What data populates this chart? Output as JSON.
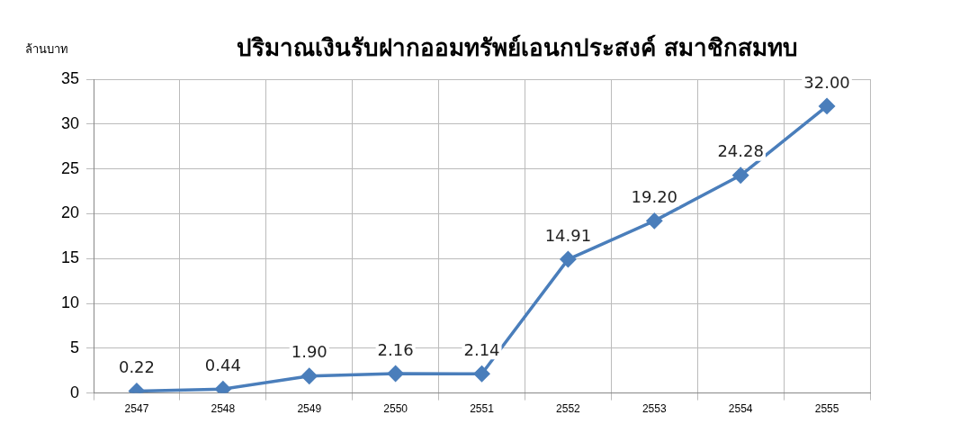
{
  "chart_data": {
    "type": "line",
    "title": "ปริมาณเงินรับฝากออมทรัพย์เอนกประสงค์ สมาชิกสมทบ",
    "ylabel": "ล้านบาท",
    "categories": [
      "2547",
      "2548",
      "2549",
      "2550",
      "2551",
      "2552",
      "2553",
      "2554",
      "2555"
    ],
    "series": [
      {
        "color": "#4a7ebb",
        "values": [
          0.22,
          0.44,
          1.9,
          2.16,
          2.14,
          14.91,
          19.2,
          24.28,
          32.0
        ]
      }
    ],
    "value_labels": [
      "0.22",
      "0.44",
      "1.90",
      "2.16",
      "2.14",
      "14.91",
      "19.20",
      "24.28",
      "32.00"
    ],
    "ylim": [
      0,
      35
    ],
    "yticks": [
      0,
      5,
      10,
      15,
      20,
      25,
      30,
      35
    ],
    "grid": true,
    "legend": false,
    "marker": "diamond",
    "line_style": "solid"
  }
}
